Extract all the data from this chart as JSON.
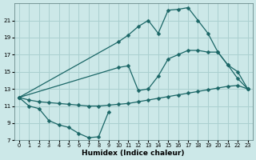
{
  "xlabel": "Humidex (Indice chaleur)",
  "background_color": "#cce8e8",
  "grid_color": "#aad0d0",
  "line_color": "#1a6666",
  "xlim": [
    -0.5,
    23.5
  ],
  "ylim": [
    7,
    23
  ],
  "xticks": [
    0,
    1,
    2,
    3,
    4,
    5,
    6,
    7,
    8,
    9,
    10,
    11,
    12,
    13,
    14,
    15,
    16,
    17,
    18,
    19,
    20,
    21,
    22,
    23
  ],
  "yticks": [
    7,
    9,
    11,
    13,
    15,
    17,
    19,
    21
  ],
  "line1_x": [
    0,
    1,
    2,
    3,
    4,
    5,
    6,
    7,
    8,
    9
  ],
  "line1_y": [
    12,
    11,
    10.7,
    9.3,
    8.8,
    8.5,
    7.8,
    7.3,
    7.4,
    10.3
  ],
  "line2_x": [
    0,
    1,
    2,
    3,
    4,
    5,
    6,
    7,
    8,
    9,
    10,
    11,
    12,
    13,
    14,
    15,
    16,
    17,
    18,
    19,
    20,
    21,
    22,
    23
  ],
  "line2_y": [
    12,
    11.7,
    11.5,
    11.4,
    11.3,
    11.2,
    11.1,
    11.0,
    11.0,
    11.1,
    11.2,
    11.3,
    11.5,
    11.7,
    11.9,
    12.1,
    12.3,
    12.5,
    12.7,
    12.9,
    13.1,
    13.3,
    13.4,
    13.0
  ],
  "line3_x": [
    0,
    10,
    11,
    12,
    13,
    14,
    15,
    16,
    17,
    18,
    19,
    20,
    21,
    22,
    23
  ],
  "line3_y": [
    12,
    18.5,
    19.3,
    20.3,
    21.0,
    19.5,
    22.2,
    22.3,
    22.5,
    21.0,
    19.5,
    17.3,
    15.8,
    14.2,
    13.0
  ],
  "line4_x": [
    0,
    10,
    11,
    12,
    13,
    14,
    15,
    16,
    17,
    18,
    19,
    20,
    21,
    22,
    23
  ],
  "line4_y": [
    12,
    15.5,
    15.7,
    12.8,
    13.0,
    14.5,
    16.5,
    17.0,
    17.5,
    17.5,
    17.3,
    17.3,
    15.8,
    15.0,
    13.0
  ]
}
